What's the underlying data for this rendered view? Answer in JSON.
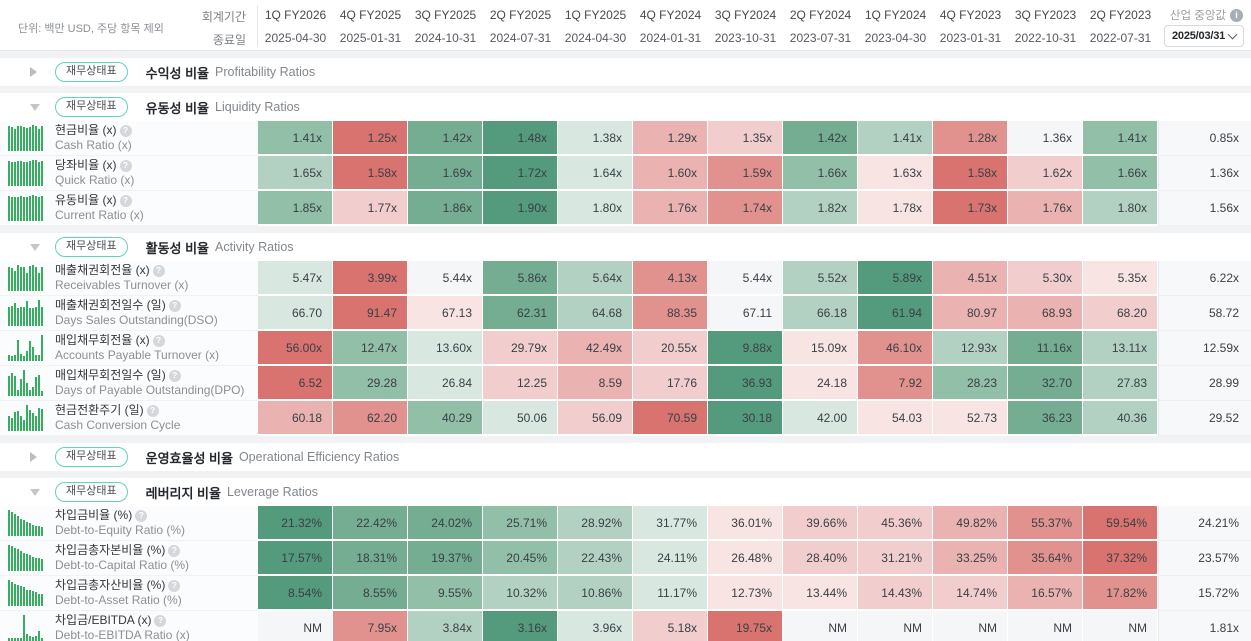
{
  "header": {
    "unit_note": "단위: 백만 USD, 주당 항목 제외",
    "fiscal_period_label": "회계기간",
    "end_date_label": "종료일",
    "industry_median_label": "산업 중앙값",
    "industry_median_info_icon": "i",
    "industry_median_date": "2025/03/31"
  },
  "badge_label": "재무상태표",
  "help_icon": "?",
  "columns": [
    {
      "quarter": "1Q FY2026",
      "end": "2025-04-30"
    },
    {
      "quarter": "4Q FY2025",
      "end": "2025-01-31"
    },
    {
      "quarter": "3Q FY2025",
      "end": "2024-10-31"
    },
    {
      "quarter": "2Q FY2025",
      "end": "2024-07-31"
    },
    {
      "quarter": "1Q FY2025",
      "end": "2024-04-30"
    },
    {
      "quarter": "4Q FY2024",
      "end": "2024-01-31"
    },
    {
      "quarter": "3Q FY2024",
      "end": "2023-10-31"
    },
    {
      "quarter": "2Q FY2024",
      "end": "2023-07-31"
    },
    {
      "quarter": "1Q FY2024",
      "end": "2023-04-30"
    },
    {
      "quarter": "4Q FY2023",
      "end": "2023-01-31"
    },
    {
      "quarter": "3Q FY2023",
      "end": "2022-10-31"
    },
    {
      "quarter": "2Q FY2023",
      "end": "2022-07-31"
    }
  ],
  "palette": {
    "g1": "#549a7d",
    "g2": "#74ad92",
    "g3": "#92bfa8",
    "g4": "#b3d1c2",
    "g5": "#d8e8e0",
    "w": "#f5f6f8",
    "p5": "#f7e4e3",
    "p4": "#f1cecd",
    "p3": "#eab3b1",
    "p2": "#e2928e",
    "p1": "#d8736f"
  },
  "sections": [
    {
      "kr": "수익성 비율",
      "en": "Profitability Ratios",
      "expanded": false,
      "rows": []
    },
    {
      "kr": "유동성 비율",
      "en": "Liquidity Ratios",
      "expanded": true,
      "rows": [
        {
          "kr": "현금비율 (x)",
          "en": "Cash Ratio (x)",
          "values": [
            "1.41x",
            "1.25x",
            "1.42x",
            "1.48x",
            "1.38x",
            "1.29x",
            "1.35x",
            "1.42x",
            "1.41x",
            "1.28x",
            "1.36x",
            "1.41x"
          ],
          "heat": [
            "g3",
            "p1",
            "g2",
            "g1",
            "g5",
            "p3",
            "p4",
            "g2",
            "g4",
            "p2",
            "w",
            "g3"
          ],
          "median": "0.85x"
        },
        {
          "kr": "당좌비율 (x)",
          "en": "Quick Ratio (x)",
          "values": [
            "1.65x",
            "1.58x",
            "1.69x",
            "1.72x",
            "1.64x",
            "1.60x",
            "1.59x",
            "1.66x",
            "1.63x",
            "1.58x",
            "1.62x",
            "1.66x"
          ],
          "heat": [
            "g4",
            "p1",
            "g2",
            "g1",
            "g5",
            "p3",
            "p2",
            "g3",
            "p5",
            "p1",
            "p4",
            "g3"
          ],
          "median": "1.36x"
        },
        {
          "kr": "유동비율 (x)",
          "en": "Current Ratio (x)",
          "values": [
            "1.85x",
            "1.77x",
            "1.86x",
            "1.90x",
            "1.80x",
            "1.76x",
            "1.74x",
            "1.82x",
            "1.78x",
            "1.73x",
            "1.76x",
            "1.80x"
          ],
          "heat": [
            "g3",
            "p4",
            "g2",
            "g1",
            "g5",
            "p3",
            "p2",
            "g4",
            "p5",
            "p1",
            "p3",
            "g4"
          ],
          "median": "1.56x"
        }
      ]
    },
    {
      "kr": "활동성 비율",
      "en": "Activity Ratios",
      "expanded": true,
      "rows": [
        {
          "kr": "매출채권회전율 (x)",
          "en": "Receivables Turnover (x)",
          "values": [
            "5.47x",
            "3.99x",
            "5.44x",
            "5.86x",
            "5.64x",
            "4.13x",
            "5.44x",
            "5.52x",
            "5.89x",
            "4.51x",
            "5.30x",
            "5.35x"
          ],
          "heat": [
            "g5",
            "p1",
            "w",
            "g2",
            "g4",
            "p2",
            "w",
            "g4",
            "g1",
            "p3",
            "p4",
            "p5"
          ],
          "median": "6.22x"
        },
        {
          "kr": "매출채권회전일수 (일)",
          "en": "Days Sales Outstanding(DSO)",
          "values": [
            "66.70",
            "91.47",
            "67.13",
            "62.31",
            "64.68",
            "88.35",
            "67.11",
            "66.18",
            "61.94",
            "80.97",
            "68.93",
            "68.20"
          ],
          "heat": [
            "g5",
            "p1",
            "p5",
            "g2",
            "g4",
            "p2",
            "w",
            "g4",
            "g1",
            "p3",
            "p3",
            "p4"
          ],
          "median": "58.72"
        },
        {
          "kr": "매입채무회전율 (x)",
          "en": "Accounts Payable Turnover (x)",
          "values": [
            "56.00x",
            "12.47x",
            "13.60x",
            "29.79x",
            "42.49x",
            "20.55x",
            "9.88x",
            "15.09x",
            "46.10x",
            "12.93x",
            "11.16x",
            "13.11x"
          ],
          "heat": [
            "p1",
            "g3",
            "g5",
            "p4",
            "p3",
            "p4",
            "g1",
            "p5",
            "p2",
            "g4",
            "g2",
            "g4"
          ],
          "median": "12.59x"
        },
        {
          "kr": "매입채무회전일수 (일)",
          "en": "Days of Payable Outstanding(DPO)",
          "values": [
            "6.52",
            "29.28",
            "26.84",
            "12.25",
            "8.59",
            "17.76",
            "36.93",
            "24.18",
            "7.92",
            "28.23",
            "32.70",
            "27.83"
          ],
          "heat": [
            "p1",
            "g3",
            "g5",
            "p4",
            "p3",
            "p4",
            "g1",
            "p5",
            "p2",
            "g3",
            "g2",
            "g4"
          ],
          "median": "28.99"
        },
        {
          "kr": "현금전환주기 (일)",
          "en": "Cash Conversion Cycle",
          "values": [
            "60.18",
            "62.20",
            "40.29",
            "50.06",
            "56.09",
            "70.59",
            "30.18",
            "42.00",
            "54.03",
            "52.73",
            "36.23",
            "40.36"
          ],
          "heat": [
            "p3",
            "p2",
            "g3",
            "g5",
            "p4",
            "p1",
            "g1",
            "g5",
            "p5",
            "p5",
            "g2",
            "g4"
          ],
          "median": "29.52"
        }
      ]
    },
    {
      "kr": "운영효율성 비율",
      "en": "Operational Efficiency Ratios",
      "expanded": false,
      "rows": []
    },
    {
      "kr": "레버리지 비율",
      "en": "Leverage Ratios",
      "expanded": true,
      "rows": [
        {
          "kr": "차입금비율 (%)",
          "en": "Debt-to-Equity Ratio (%)",
          "values": [
            "21.32%",
            "22.42%",
            "24.02%",
            "25.71%",
            "28.92%",
            "31.77%",
            "36.01%",
            "39.66%",
            "45.36%",
            "49.82%",
            "55.37%",
            "59.54%"
          ],
          "heat": [
            "g1",
            "g2",
            "g2",
            "g3",
            "g4",
            "g5",
            "p5",
            "p4",
            "p4",
            "p3",
            "p2",
            "p1"
          ],
          "median": "24.21%"
        },
        {
          "kr": "차입금총자본비율 (%)",
          "en": "Debt-to-Capital Ratio (%)",
          "values": [
            "17.57%",
            "18.31%",
            "19.37%",
            "20.45%",
            "22.43%",
            "24.11%",
            "26.48%",
            "28.40%",
            "31.21%",
            "33.25%",
            "35.64%",
            "37.32%"
          ],
          "heat": [
            "g1",
            "g2",
            "g2",
            "g3",
            "g4",
            "g5",
            "p5",
            "p4",
            "p4",
            "p3",
            "p2",
            "p1"
          ],
          "median": "23.57%"
        },
        {
          "kr": "차입금총자산비율 (%)",
          "en": "Debt-to-Asset Ratio (%)",
          "values": [
            "8.54%",
            "8.55%",
            "9.55%",
            "10.32%",
            "10.86%",
            "11.17%",
            "12.73%",
            "13.44%",
            "14.43%",
            "14.74%",
            "16.57%",
            "17.82%"
          ],
          "heat": [
            "g1",
            "g2",
            "g3",
            "g4",
            "g4",
            "g5",
            "p5",
            "p5",
            "p4",
            "p4",
            "p3",
            "p2"
          ],
          "median": "15.72%"
        },
        {
          "kr": "차입금/EBITDA (x)",
          "en": "Debt-to-EBITDA Ratio (x)",
          "values": [
            "NM",
            "7.95x",
            "3.84x",
            "3.16x",
            "3.96x",
            "5.18x",
            "19.75x",
            "NM",
            "NM",
            "NM",
            "NM",
            "NM"
          ],
          "heat": [
            "w",
            "p2",
            "g4",
            "g1",
            "g5",
            "p4",
            "p1",
            "w",
            "w",
            "w",
            "w",
            "w"
          ],
          "median": "1.81x"
        }
      ]
    }
  ]
}
